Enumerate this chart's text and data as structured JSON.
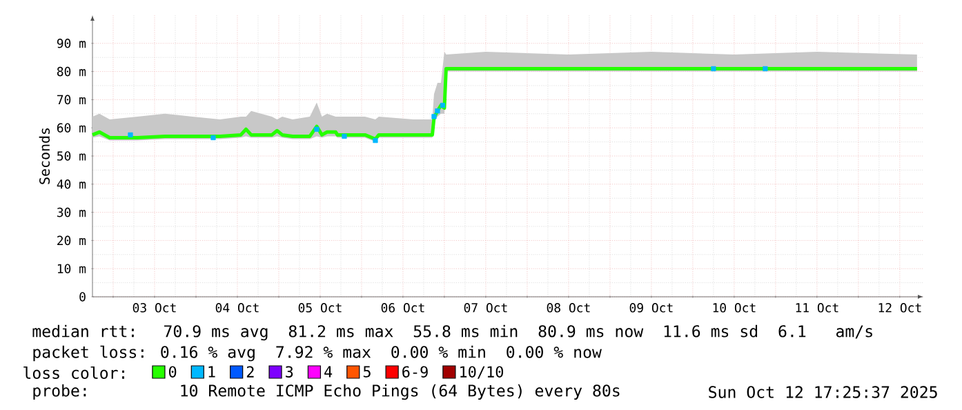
{
  "chart_data": {
    "type": "line",
    "ylabel": "Seconds",
    "xlim": [
      "2025-10-02T18:00",
      "2025-10-12T18:50"
    ],
    "ylim": [
      0,
      100
    ],
    "xticks": [
      {
        "value": "2025-10-03T00:00",
        "label": null
      },
      {
        "value": "2025-10-03T12:00",
        "label": "03 Oct"
      },
      {
        "value": "2025-10-04T00:00",
        "label": null
      },
      {
        "value": "2025-10-04T12:00",
        "label": "04 Oct"
      },
      {
        "value": "2025-10-05T00:00",
        "label": null
      },
      {
        "value": "2025-10-05T12:00",
        "label": "05 Oct"
      },
      {
        "value": "2025-10-06T00:00",
        "label": null
      },
      {
        "value": "2025-10-06T12:00",
        "label": "06 Oct"
      },
      {
        "value": "2025-10-07T00:00",
        "label": null
      },
      {
        "value": "2025-10-07T12:00",
        "label": "07 Oct"
      },
      {
        "value": "2025-10-08T00:00",
        "label": null
      },
      {
        "value": "2025-10-08T12:00",
        "label": "08 Oct"
      },
      {
        "value": "2025-10-09T00:00",
        "label": null
      },
      {
        "value": "2025-10-09T12:00",
        "label": "09 Oct"
      },
      {
        "value": "2025-10-10T00:00",
        "label": null
      },
      {
        "value": "2025-10-10T12:00",
        "label": "10 Oct"
      },
      {
        "value": "2025-10-11T00:00",
        "label": null
      },
      {
        "value": "2025-10-11T12:00",
        "label": "11 Oct"
      },
      {
        "value": "2025-10-12T00:00",
        "label": null
      },
      {
        "value": "2025-10-12T12:00",
        "label": "12 Oct"
      }
    ],
    "yticks": [
      0,
      {
        "value": 10,
        "label": "10 m"
      },
      {
        "value": 20,
        "label": "20 m"
      },
      {
        "value": 30,
        "label": "30 m"
      },
      {
        "value": 40,
        "label": "40 m"
      },
      {
        "value": 50,
        "label": "50 m"
      },
      {
        "value": 60,
        "label": "60 m"
      },
      {
        "value": 70,
        "label": "70 m"
      },
      {
        "value": 80,
        "label": "80 m"
      },
      {
        "value": 90,
        "label": "90 m"
      }
    ],
    "grid": true,
    "legend": "bottom",
    "legend_title": "loss color:",
    "series": [
      {
        "name": "0",
        "color": "#26ff00",
        "x": [
          "2025-10-02T18:00",
          "2025-10-02T20:00",
          "2025-10-02T23:00",
          "2025-10-03T07:00",
          "2025-10-03T15:00",
          "2025-10-03T23:00",
          "2025-10-04T07:00",
          "2025-10-04T13:00",
          "2025-10-04T14:30",
          "2025-10-04T16:00",
          "2025-10-04T22:00",
          "2025-10-04T23:30",
          "2025-10-05T01:00",
          "2025-10-05T04:00",
          "2025-10-05T09:00",
          "2025-10-05T11:00",
          "2025-10-05T12:30",
          "2025-10-05T14:00",
          "2025-10-05T16:30",
          "2025-10-05T17:00",
          "2025-10-06T01:00",
          "2025-10-06T04:00",
          "2025-10-06T05:00",
          "2025-10-06T15:00",
          "2025-10-06T20:30",
          "2025-10-06T21:00",
          "2025-10-06T22:00",
          "2025-10-06T23:00",
          "2025-10-07T00:00",
          "2025-10-07T00:30",
          "2025-10-07T12:00",
          "2025-10-08T12:00",
          "2025-10-09T12:00",
          "2025-10-10T12:00",
          "2025-10-11T12:00",
          "2025-10-12T17:00"
        ],
        "values": [
          57.5,
          58.5,
          56.5,
          56.5,
          57,
          57,
          57,
          57.5,
          59.5,
          57.5,
          57.5,
          59,
          57.5,
          57,
          57,
          60.5,
          57.5,
          58.5,
          58.5,
          57.5,
          57.5,
          56,
          57.5,
          57.5,
          57.5,
          63.5,
          66,
          68,
          67,
          81,
          81,
          81,
          81,
          81,
          81,
          81
        ],
        "lower": [
          56.5,
          57,
          55.5,
          55.5,
          56,
          56,
          56,
          56.5,
          57,
          56.5,
          56.5,
          57,
          56.5,
          56,
          56,
          57,
          56.5,
          57,
          57,
          56.5,
          56.5,
          55,
          56.5,
          56.5,
          56.5,
          62,
          64,
          65,
          65,
          80,
          80,
          80,
          80,
          80,
          80,
          80
        ],
        "upper": [
          64,
          65,
          63,
          64,
          65,
          64,
          63,
          64,
          64,
          66,
          64,
          63,
          64,
          63,
          64,
          69,
          64,
          65,
          64,
          64,
          64,
          63,
          64,
          63,
          63,
          72,
          76,
          76,
          87,
          86,
          87,
          86,
          87,
          86,
          87,
          86
        ]
      },
      {
        "name": "1",
        "color": "#00b8ff",
        "type": "scatter",
        "marker": "square",
        "x": [
          "2025-10-03T05:00",
          "2025-10-04T05:00",
          "2025-10-05T11:00",
          "2025-10-05T19:00",
          "2025-10-06T04:00",
          "2025-10-06T21:00",
          "2025-10-06T22:00",
          "2025-10-06T23:30",
          "2025-10-10T06:00",
          "2025-10-10T21:00"
        ],
        "values": [
          57.5,
          56.5,
          59.5,
          57,
          55.5,
          64,
          66,
          68,
          81,
          81
        ]
      },
      {
        "name": "2",
        "color": "#0059ff"
      },
      {
        "name": "3",
        "color": "#7e00ff"
      },
      {
        "name": "4",
        "color": "#ff00ff"
      },
      {
        "name": "5",
        "color": "#ff5500"
      },
      {
        "name": "6-9",
        "color": "#ff0000"
      },
      {
        "name": "10/10",
        "color": "#a10000"
      }
    ],
    "annotations": [
      "median rtt:  70.9 ms avg  81.2 ms max  55.8 ms min  80.9 ms now  11.6 ms sd  6.1   am/s",
      "packet loss: 0.16 % avg  7.92 % max  0.00 % min  0.00 % now",
      "probe:       10 Remote ICMP Echo Pings (64 Bytes) every 80s",
      "Sun Oct 12 17:25:37 2025"
    ]
  }
}
